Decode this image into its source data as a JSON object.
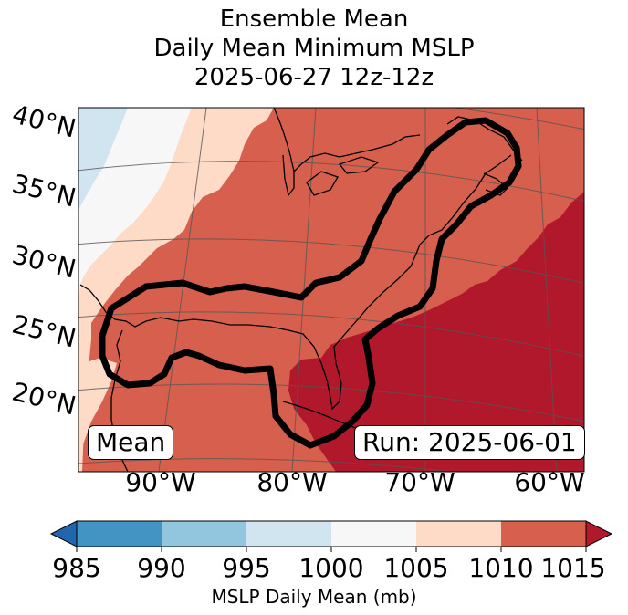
{
  "title": {
    "line1": "Ensemble Mean",
    "line2": "Daily Mean Minimum MSLP",
    "line3": "2025-06-27 12z-12z"
  },
  "map": {
    "lat_labels": [
      "40°N",
      "35°N",
      "30°N",
      "25°N",
      "20°N"
    ],
    "lon_labels": [
      "90°W",
      "80°W",
      "70°W",
      "60°W"
    ],
    "stat_label": "Mean",
    "run_label": "Run: 2025-06-01",
    "contour": "black outline of ensemble storm-track region from the western Gulf of Mexico across the Gulf and Florida and up the US East Coast to New England"
  },
  "colorbar": {
    "ticks": [
      "985",
      "990",
      "995",
      "1000",
      "1005",
      "1010",
      "1015"
    ],
    "label": "MSLP Daily Mean (mb)",
    "colors": {
      "under": "#2166ac",
      "985-990": "#4393c3",
      "990-995": "#92c5de",
      "995-1000": "#d1e5f0",
      "1000-1005": "#f7f7f7",
      "1005-1010": "#fddbc7",
      "1010-1015": "#d6604d",
      "over": "#b2182b"
    }
  }
}
